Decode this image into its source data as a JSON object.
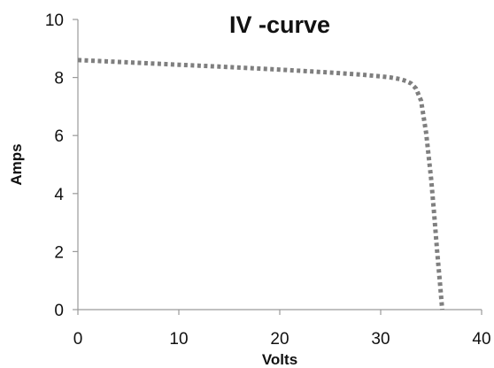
{
  "chart_data": {
    "type": "line",
    "title": "IV -curve",
    "xlabel": "Volts",
    "ylabel": "Amps",
    "xlim": [
      0,
      40
    ],
    "ylim": [
      0,
      10
    ],
    "x_ticks": [
      0,
      10,
      20,
      30,
      40
    ],
    "y_ticks": [
      0,
      2,
      4,
      6,
      8,
      10
    ],
    "x_tick_labels": [
      "0",
      "10",
      "20",
      "30",
      "40"
    ],
    "y_tick_labels": [
      "0",
      "2",
      "4",
      "6",
      "8",
      "10"
    ],
    "grid": false,
    "series": [
      {
        "line_style": "dotted",
        "color": "#7f7f7f",
        "x": [
          0,
          5,
          10,
          15,
          20,
          25,
          28,
          30,
          31,
          32,
          32.5,
          33,
          33.5,
          34,
          34.5,
          35,
          35.3,
          35.6,
          35.9,
          36.1
        ],
        "y": [
          8.6,
          8.52,
          8.44,
          8.36,
          8.27,
          8.17,
          8.1,
          8.04,
          8.0,
          7.94,
          7.88,
          7.8,
          7.62,
          7.2,
          6.1,
          4.5,
          3.3,
          2.0,
          0.8,
          0.0
        ]
      }
    ]
  }
}
